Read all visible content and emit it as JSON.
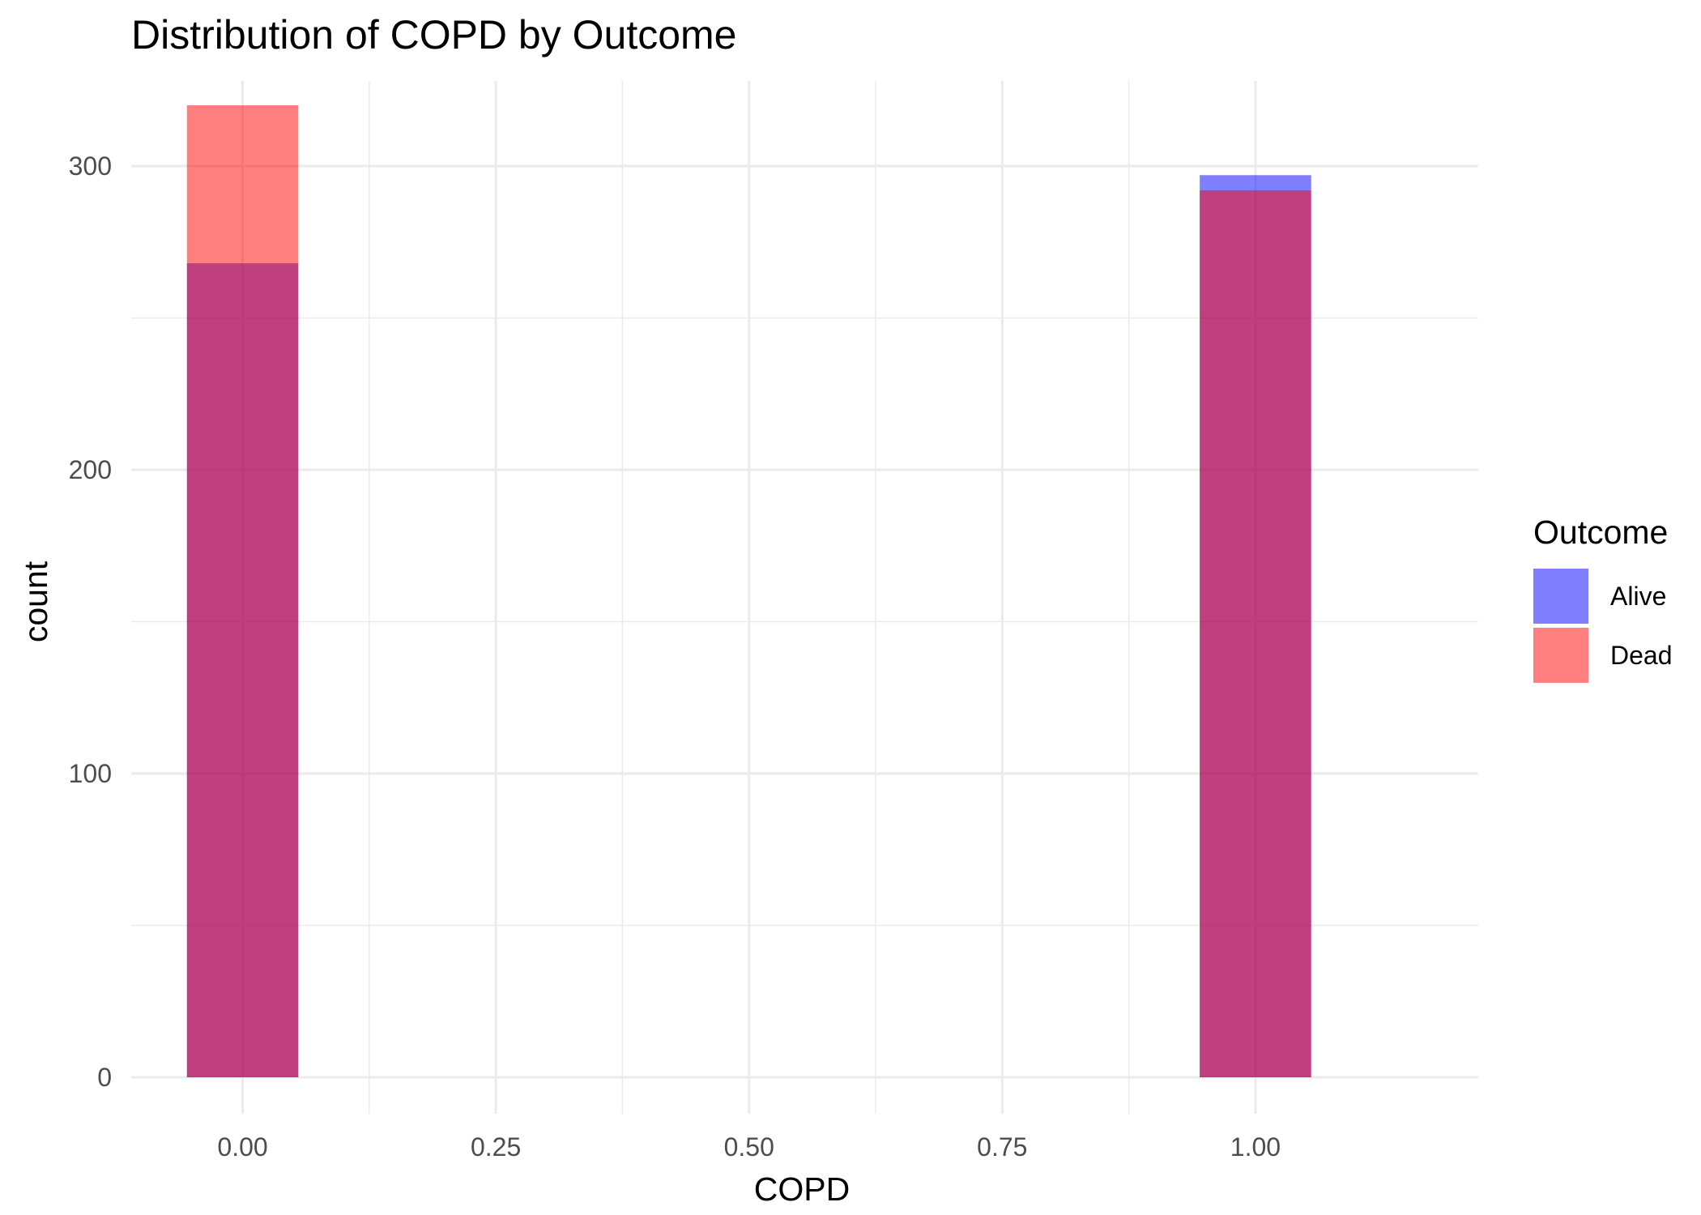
{
  "chart_data": {
    "type": "bar",
    "title": "Distribution of COPD by Outcome",
    "xlabel": "COPD",
    "ylabel": "count",
    "xlim": [
      -0.11,
      1.22
    ],
    "ylim": [
      -12,
      328
    ],
    "x_ticks": [
      0.0,
      0.25,
      0.5,
      0.75,
      1.0
    ],
    "x_tick_labels": [
      "0.00",
      "0.25",
      "0.50",
      "0.75",
      "1.00"
    ],
    "x_minor_ticks": [
      0.125,
      0.375,
      0.625,
      0.875
    ],
    "y_ticks": [
      0,
      100,
      200,
      300
    ],
    "y_tick_labels": [
      "0",
      "100",
      "200",
      "300"
    ],
    "y_minor_ticks": [
      50,
      150,
      250
    ],
    "bin_width": 0.11,
    "bar_opacity": 0.5,
    "grid": true,
    "legend_position": "right",
    "legend_title": "Outcome",
    "categories": [
      0,
      1
    ],
    "series": [
      {
        "name": "Alive",
        "color": "#0000FF",
        "values": [
          268,
          297
        ]
      },
      {
        "name": "Dead",
        "color": "#FF0000",
        "values": [
          320,
          292
        ]
      }
    ]
  }
}
